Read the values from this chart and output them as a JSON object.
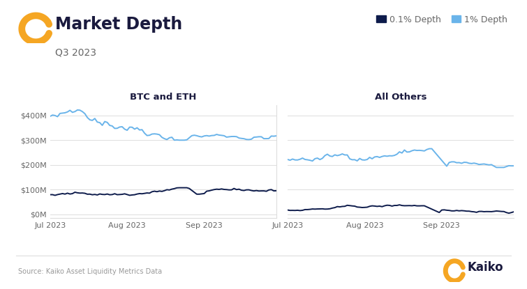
{
  "title": "Market Depth",
  "subtitle": "Q3 2023",
  "source": "Source: Kaiko Asset Liquidity Metrics Data",
  "panel1_title": "BTC and ETH",
  "panel2_title": "All Others",
  "legend_labels": [
    "0.1% Depth",
    "1% Depth"
  ],
  "color_01pct": "#0d1b4b",
  "color_1pct": "#6ab4ea",
  "background_color": "#ffffff",
  "yticklabels": [
    "$0M",
    "$100M",
    "$200M",
    "$300M",
    "$400M"
  ],
  "yticks": [
    0,
    100,
    200,
    300,
    400
  ],
  "ylim": [
    -15,
    440
  ],
  "xtick_labels": [
    "Jul 2023",
    "Aug 2023",
    "Sep 2023"
  ],
  "title_color": "#1a1a3e",
  "subtitle_color": "#666666",
  "tick_color": "#666666",
  "grid_color": "#dddddd",
  "logo_color": "#f5a623"
}
